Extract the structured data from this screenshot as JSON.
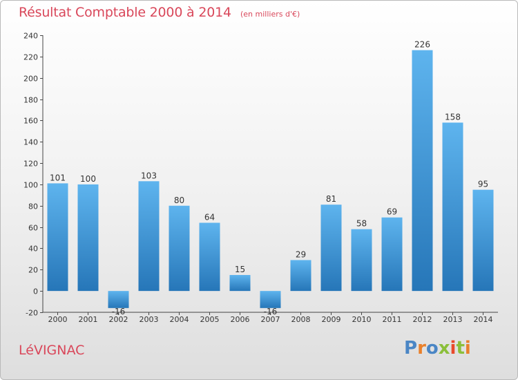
{
  "header": {
    "title": "Résultat Comptable 2000 à 2014",
    "subtitle": "(en milliers d'€)"
  },
  "footer": {
    "commune": "LéVIGNAC",
    "logo_text": "Proxiti"
  },
  "colors": {
    "title": "#d9475a",
    "bar_light": "#5eb4ee",
    "bar_dark": "#2676b8",
    "logo": [
      "#4a86c5",
      "#e9802b",
      "#4a86c5",
      "#8bbf3a",
      "#e94a2c",
      "#8bbf3a",
      "#e9802b"
    ]
  },
  "chart_data": {
    "type": "bar",
    "categories": [
      "2000",
      "2001",
      "2002",
      "2003",
      "2004",
      "2005",
      "2006",
      "2007",
      "2008",
      "2009",
      "2010",
      "2011",
      "2012",
      "2013",
      "2014"
    ],
    "values": [
      101,
      100,
      -16,
      103,
      80,
      64,
      15,
      -16,
      29,
      81,
      58,
      69,
      226,
      158,
      95
    ],
    "title": "Résultat Comptable 2000 à 2014",
    "ylim": [
      -20,
      240
    ],
    "yticks": [
      -20,
      0,
      20,
      40,
      60,
      80,
      100,
      120,
      140,
      160,
      180,
      200,
      220,
      240
    ],
    "grid": false,
    "legend": "none"
  }
}
